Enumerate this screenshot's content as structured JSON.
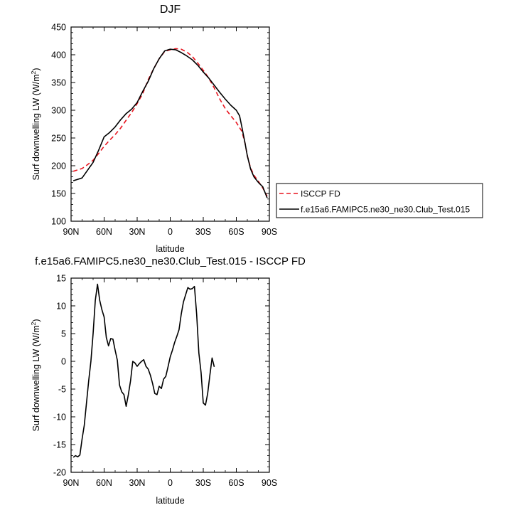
{
  "chart_data": [
    {
      "type": "line",
      "title": "DJF",
      "xlabel": "latitude",
      "ylabel": "Surf downwelling LW (W/m",
      "ylabel_sup": "2",
      "ylabel_close": ")",
      "xlim": [
        90,
        -90
      ],
      "ylim": [
        100,
        450
      ],
      "xticks": [
        {
          "value": 90,
          "label": "90N"
        },
        {
          "value": 60,
          "label": "60N"
        },
        {
          "value": 30,
          "label": "30N"
        },
        {
          "value": 0,
          "label": "0"
        },
        {
          "value": -30,
          "label": "30S"
        },
        {
          "value": -60,
          "label": "60S"
        },
        {
          "value": -90,
          "label": "90S"
        }
      ],
      "yticks": [
        100,
        150,
        200,
        250,
        300,
        350,
        400,
        450
      ],
      "legend_position": "right",
      "series": [
        {
          "name": "ISCCP FD",
          "color": "#e8141e",
          "dash": "dashed",
          "points": [
            [
              88,
              190
            ],
            [
              80,
              195
            ],
            [
              75,
              202
            ],
            [
              70,
              210
            ],
            [
              65,
              222
            ],
            [
              60,
              235
            ],
            [
              55,
              246
            ],
            [
              50,
              256
            ],
            [
              45,
              268
            ],
            [
              40,
              282
            ],
            [
              35,
              296
            ],
            [
              30,
              312
            ],
            [
              25,
              330
            ],
            [
              20,
              355
            ],
            [
              15,
              375
            ],
            [
              10,
              393
            ],
            [
              5,
              406
            ],
            [
              0,
              409
            ],
            [
              -5,
              411
            ],
            [
              -10,
              410
            ],
            [
              -15,
              405
            ],
            [
              -20,
              397
            ],
            [
              -25,
              385
            ],
            [
              -30,
              372
            ],
            [
              -35,
              358
            ],
            [
              -40,
              340
            ],
            [
              -45,
              320
            ],
            [
              -50,
              303
            ],
            [
              -55,
              290
            ],
            [
              -60,
              278
            ],
            [
              -65,
              262
            ],
            [
              -68,
              240
            ],
            [
              -70,
              218
            ],
            [
              -73,
              196
            ],
            [
              -76,
              183
            ],
            [
              -80,
              172
            ],
            [
              -84,
              160
            ],
            [
              -88,
              145
            ]
          ]
        },
        {
          "name": "f.e15a6.FAMIPC5.ne30_ne30.Club_Test.015",
          "color": "#000000",
          "dash": "solid",
          "points": [
            [
              88,
              173
            ],
            [
              80,
              178
            ],
            [
              75,
              192
            ],
            [
              70,
              206
            ],
            [
              65,
              228
            ],
            [
              60,
              252
            ],
            [
              55,
              260
            ],
            [
              50,
              270
            ],
            [
              45,
              283
            ],
            [
              40,
              294
            ],
            [
              35,
              302
            ],
            [
              30,
              314
            ],
            [
              25,
              334
            ],
            [
              20,
              352
            ],
            [
              15,
              375
            ],
            [
              10,
              393
            ],
            [
              5,
              407
            ],
            [
              0,
              410
            ],
            [
              -5,
              409
            ],
            [
              -10,
              404
            ],
            [
              -15,
              398
            ],
            [
              -20,
              391
            ],
            [
              -25,
              381
            ],
            [
              -30,
              369
            ],
            [
              -35,
              358
            ],
            [
              -40,
              345
            ],
            [
              -45,
              332
            ],
            [
              -50,
              320
            ],
            [
              -55,
              309
            ],
            [
              -60,
              300
            ],
            [
              -63,
              290
            ],
            [
              -65,
              270
            ],
            [
              -68,
              240
            ],
            [
              -70,
              218
            ],
            [
              -73,
              194
            ],
            [
              -76,
              180
            ],
            [
              -80,
              170
            ],
            [
              -84,
              162
            ],
            [
              -88,
              142
            ]
          ]
        }
      ]
    },
    {
      "type": "line",
      "title": "f.e15a6.FAMIPC5.ne30_ne30.Club_Test.015 - ISCCP FD",
      "xlabel": "latitude",
      "ylabel": "Surf downwelling LW (W/m",
      "ylabel_sup": "2",
      "ylabel_close": ")",
      "xlim": [
        90,
        -90
      ],
      "ylim": [
        -20,
        15
      ],
      "xticks": [
        {
          "value": 90,
          "label": "90N"
        },
        {
          "value": 60,
          "label": "60N"
        },
        {
          "value": 30,
          "label": "30N"
        },
        {
          "value": 0,
          "label": "0"
        },
        {
          "value": -30,
          "label": "30S"
        },
        {
          "value": -60,
          "label": "60S"
        },
        {
          "value": -90,
          "label": "90S"
        }
      ],
      "yticks": [
        -20,
        -15,
        -10,
        -5,
        0,
        5,
        10,
        15
      ],
      "series": [
        {
          "name": "",
          "color": "#000000",
          "dash": "solid",
          "points": [
            [
              88,
              -17.3
            ],
            [
              86,
              -17.0
            ],
            [
              84,
              -17.2
            ],
            [
              82,
              -16.9
            ],
            [
              80,
              -14.0
            ],
            [
              78,
              -11.5
            ],
            [
              76,
              -7.5
            ],
            [
              74,
              -3.5
            ],
            [
              72,
              0.0
            ],
            [
              70,
              5.0
            ],
            [
              68,
              11.0
            ],
            [
              66,
              13.9
            ],
            [
              64,
              11.0
            ],
            [
              62,
              9.3
            ],
            [
              60,
              8.0
            ],
            [
              58,
              4.3
            ],
            [
              56,
              2.8
            ],
            [
              54,
              4.1
            ],
            [
              52,
              4.0
            ],
            [
              50,
              2.0
            ],
            [
              48,
              0.2
            ],
            [
              46,
              -4.3
            ],
            [
              44,
              -5.5
            ],
            [
              42,
              -6.0
            ],
            [
              40,
              -8.1
            ],
            [
              38,
              -6.0
            ],
            [
              36,
              -3.5
            ],
            [
              34,
              0.0
            ],
            [
              32,
              -0.3
            ],
            [
              30,
              -0.9
            ],
            [
              28,
              -0.4
            ],
            [
              26,
              0.0
            ],
            [
              24,
              0.3
            ],
            [
              22,
              -0.9
            ],
            [
              20,
              -1.4
            ],
            [
              18,
              -2.5
            ],
            [
              16,
              -4.0
            ],
            [
              14,
              -5.8
            ],
            [
              12,
              -6.0
            ],
            [
              10,
              -4.5
            ],
            [
              8,
              -4.9
            ],
            [
              6,
              -3.2
            ],
            [
              4,
              -2.7
            ],
            [
              2,
              -1.0
            ],
            [
              0,
              0.8
            ],
            [
              -2,
              2.0
            ],
            [
              -4,
              3.4
            ],
            [
              -6,
              4.5
            ],
            [
              -8,
              5.7
            ],
            [
              -10,
              8.5
            ],
            [
              -12,
              10.7
            ],
            [
              -14,
              12.0
            ],
            [
              -16,
              13.3
            ],
            [
              -18,
              13.0
            ],
            [
              -20,
              13.1
            ],
            [
              -22,
              13.5
            ],
            [
              -24,
              8.5
            ],
            [
              -26,
              1.5
            ],
            [
              -28,
              -2.0
            ],
            [
              -30,
              -7.5
            ],
            [
              -32,
              -7.9
            ],
            [
              -34,
              -5.8
            ],
            [
              -36,
              -2.5
            ],
            [
              -38,
              0.6
            ],
            [
              -40,
              -1.0
            ]
          ]
        }
      ]
    }
  ]
}
